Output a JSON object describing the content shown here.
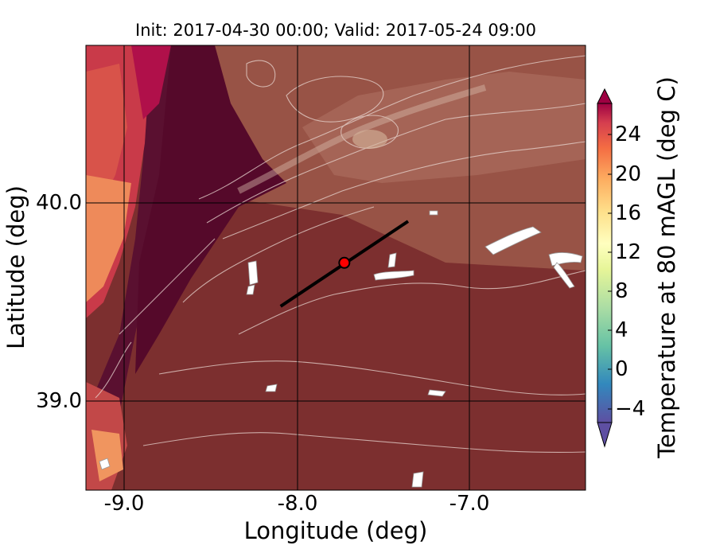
{
  "title": "Init: 2017-04-30 00:00; Valid: 2017-05-24 09:00",
  "x_axis": {
    "label": "Longitude (deg)",
    "ticks": [
      "-9.0",
      "-8.0",
      "-7.0"
    ]
  },
  "y_axis": {
    "label": "Latitude (deg)",
    "ticks": [
      "40.0",
      "39.0"
    ]
  },
  "colorbar": {
    "label": "Temperature at 80 mAGL (deg C)",
    "ticks": [
      "24",
      "20",
      "16",
      "12",
      "8",
      "4",
      "0",
      "−4"
    ],
    "colormap": "Spectral_r",
    "extend": "both"
  },
  "map": {
    "lon_range": [
      -9.25,
      -6.35
    ],
    "lat_range": [
      38.55,
      40.8
    ],
    "grid_lon": [
      -9.0,
      -8.0,
      -7.0
    ],
    "grid_lat": [
      39.0,
      40.0
    ],
    "cross_section_line": {
      "start": [
        -8.12,
        39.48
      ],
      "end": [
        -7.38,
        39.91
      ],
      "color": "#000000"
    },
    "site_marker": {
      "lon": -7.75,
      "lat": 39.7,
      "color": "#ff0000"
    }
  }
}
